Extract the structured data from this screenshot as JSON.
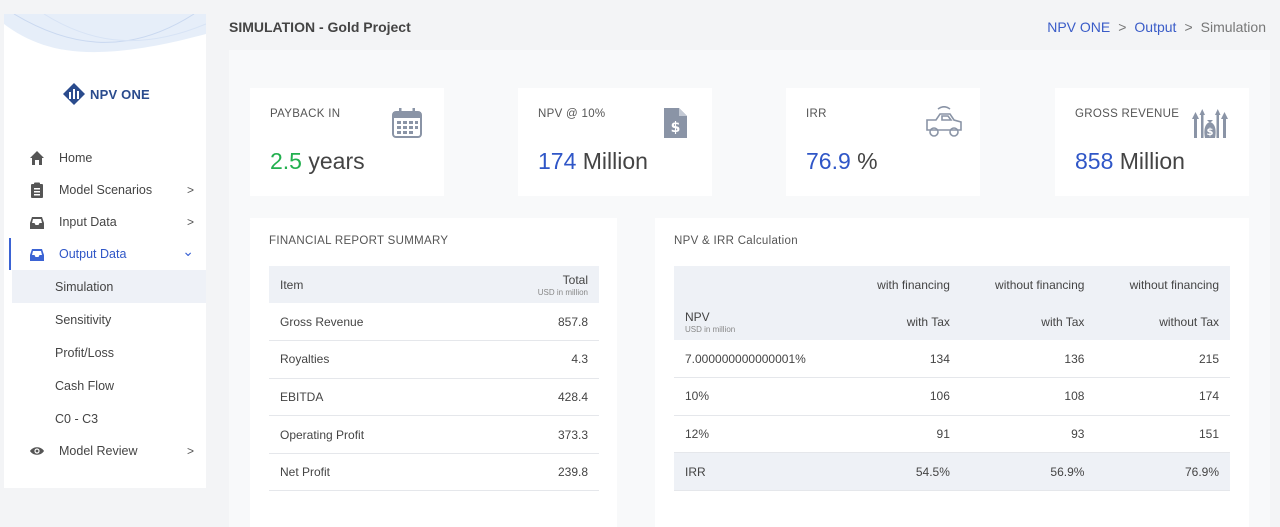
{
  "app": {
    "logo_text": "NPV ONE"
  },
  "page": {
    "title": "SIMULATION - Gold Project"
  },
  "breadcrumb": {
    "root": "NPV ONE",
    "section": "Output",
    "current": "Simulation",
    "sep": ">"
  },
  "sidebar": {
    "items": [
      {
        "label": "Home",
        "icon": "home-icon"
      },
      {
        "label": "Model Scenarios",
        "icon": "clipboard-icon",
        "chevron": ">"
      },
      {
        "label": "Input Data",
        "icon": "inbox-icon",
        "chevron": ">"
      },
      {
        "label": "Output Data",
        "icon": "outbox-icon",
        "chevron": "⌄"
      },
      {
        "label": "Model Review",
        "icon": "eye-icon",
        "chevron": ">"
      }
    ],
    "subitems": [
      "Simulation",
      "Sensitivity",
      "Profit/Loss",
      "Cash Flow",
      "C0 - C3"
    ]
  },
  "cards": {
    "payback": {
      "label": "PAYBACK IN",
      "number": "2.5",
      "unit": "years",
      "icon": "calendar-icon"
    },
    "npv": {
      "label": "NPV @ 10%",
      "number": "174",
      "unit": "Million",
      "icon": "dollar-document-icon"
    },
    "irr": {
      "label": "IRR",
      "number": "76.9",
      "unit": "%",
      "icon": "truck-icon"
    },
    "revenue": {
      "label": "GROSS REVENUE",
      "number": "858",
      "unit": "Million",
      "icon": "money-bag-icon"
    }
  },
  "financial": {
    "title": "FINANCIAL REPORT SUMMARY",
    "col_item": "Item",
    "col_total": "Total",
    "col_total_sub": "USD in million",
    "rows": [
      {
        "item": "Gross Revenue",
        "total": "857.8"
      },
      {
        "item": "Royalties",
        "total": "4.3"
      },
      {
        "item": "EBITDA",
        "total": "428.4"
      },
      {
        "item": "Operating Profit",
        "total": "373.3"
      },
      {
        "item": "Net Profit",
        "total": "239.8"
      }
    ]
  },
  "npv_irr": {
    "title": "NPV & IRR Calculation",
    "col1": "with financing",
    "col2": "without financing",
    "col3": "without financing",
    "npv_label": "NPV",
    "npv_sub": "USD in million",
    "sub1": "with Tax",
    "sub2": "with Tax",
    "sub3": "without Tax",
    "rows": [
      {
        "rate": "7.000000000000001%",
        "a": "134",
        "b": "136",
        "c": "215"
      },
      {
        "rate": "10%",
        "a": "106",
        "b": "108",
        "c": "174"
      },
      {
        "rate": "12%",
        "a": "91",
        "b": "93",
        "c": "151"
      }
    ],
    "irr": {
      "label": "IRR",
      "a": "54.5%",
      "b": "56.9%",
      "c": "76.9%"
    }
  }
}
